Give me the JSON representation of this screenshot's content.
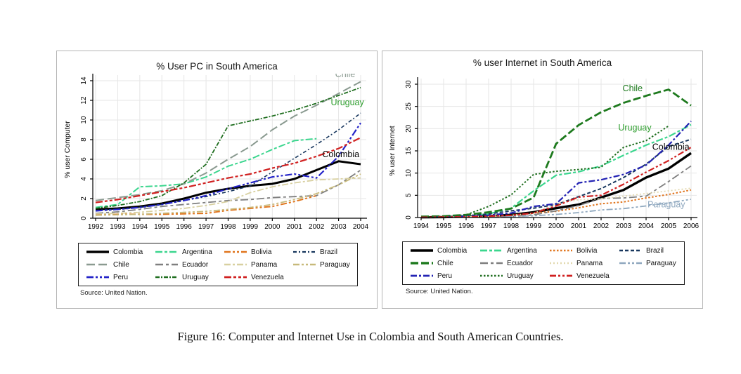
{
  "figure_caption": "Figure 16: Computer and Internet Use in Colombia and South American Countries.",
  "chart_data": [
    {
      "type": "line",
      "title": "% User PC in South America",
      "ylabel": "% user Computer",
      "source": "Source: United Nation.",
      "grid": true,
      "legend_position": "bottom",
      "x": [
        1992,
        1993,
        1994,
        1995,
        1996,
        1997,
        1998,
        1999,
        2000,
        2001,
        2002,
        2003,
        2004
      ],
      "ylim": [
        0,
        14
      ],
      "yticks": [
        0,
        2,
        4,
        6,
        8,
        10,
        12,
        14
      ],
      "annotations": [
        {
          "text": "Chile",
          "x": 2003.3,
          "y": 14.35,
          "color": "#8a9a90"
        },
        {
          "text": "Uruguay",
          "x": 2003.4,
          "y": 11.5,
          "color": "#2f9e2f"
        },
        {
          "text": "Colombia",
          "x": 2003.1,
          "y": 6.2,
          "color": "#000000"
        }
      ],
      "series": [
        {
          "name": "Colombia",
          "color": "#000000",
          "dash": "",
          "width": 3,
          "values": [
            0.9,
            1.0,
            1.2,
            1.5,
            2.0,
            2.6,
            3.0,
            3.3,
            3.5,
            4.0,
            4.9,
            5.8,
            5.5
          ]
        },
        {
          "name": "Argentina",
          "color": "#3bd68e",
          "dash": "10 3 4 3",
          "width": 2,
          "values": [
            1.1,
            1.4,
            3.2,
            3.3,
            3.5,
            4.2,
            5.3,
            6.0,
            7.0,
            7.9,
            8.1,
            null,
            null
          ]
        },
        {
          "name": "Bolivia",
          "color": "#e0751e",
          "dash": "9 3 3 3 3 3",
          "width": 2,
          "values": [
            0.35,
            0.4,
            0.4,
            0.4,
            0.45,
            0.5,
            0.8,
            1.0,
            1.2,
            1.7,
            2.3,
            null,
            null
          ]
        },
        {
          "name": "Brazil",
          "color": "#17365d",
          "dash": "5 3 2 3",
          "width": 1.6,
          "values": [
            0.8,
            0.9,
            1.1,
            1.4,
            1.8,
            2.2,
            2.7,
            3.3,
            4.7,
            6.1,
            7.5,
            9.0,
            10.7
          ]
        },
        {
          "name": "Chile",
          "color": "#8a9a90",
          "dash": "12 5",
          "width": 2,
          "values": [
            1.8,
            2.1,
            2.4,
            2.8,
            3.5,
            4.6,
            6.0,
            7.3,
            9.0,
            10.4,
            11.5,
            12.7,
            13.9
          ]
        },
        {
          "name": "Ecuador",
          "color": "#7f7f7f",
          "dash": "11 4 4 4",
          "width": 1.8,
          "values": [
            0.5,
            0.65,
            0.9,
            1.2,
            1.4,
            1.6,
            1.8,
            1.9,
            2.1,
            2.2,
            2.3,
            3.4,
            4.9
          ]
        },
        {
          "name": "Panama",
          "color": "#d8d0a0",
          "dash": "9 3 3 3",
          "width": 1.8,
          "values": [
            0.45,
            0.5,
            0.6,
            0.8,
            1.0,
            1.3,
            1.7,
            2.6,
            3.2,
            3.6,
            3.9,
            4.0,
            4.1
          ]
        },
        {
          "name": "Paraguay",
          "color": "#c7b97a",
          "dash": "9 3 3 3 3 3",
          "width": 1.8,
          "values": [
            0.3,
            0.35,
            0.4,
            0.5,
            0.6,
            0.7,
            0.9,
            1.1,
            1.4,
            1.9,
            2.5,
            3.4,
            4.5
          ]
        },
        {
          "name": "Peru",
          "color": "#2323c8",
          "dash": "10 3 3 3 3 3",
          "width": 2.2,
          "values": [
            0.75,
            0.9,
            1.1,
            1.4,
            1.8,
            2.3,
            3.0,
            3.6,
            4.2,
            4.5,
            4.1,
            6.3,
            9.7
          ]
        },
        {
          "name": "Uruguay",
          "color": "#1f6e1f",
          "dash": "6 2 2 2",
          "width": 1.8,
          "values": [
            1.0,
            1.3,
            1.7,
            2.3,
            3.6,
            5.5,
            9.4,
            9.9,
            10.4,
            11.0,
            11.7,
            12.5,
            13.3
          ]
        },
        {
          "name": "Venezuela",
          "color": "#d02020",
          "dash": "10 3 4 3 4 3",
          "width": 2.2,
          "values": [
            1.6,
            1.9,
            2.3,
            2.7,
            3.1,
            3.6,
            4.1,
            4.5,
            5.1,
            5.6,
            6.3,
            7.1,
            8.2
          ]
        }
      ]
    },
    {
      "type": "line",
      "title": "% user Internet in South America",
      "ylabel": "% user Internet",
      "source": "Source: United Nation.",
      "grid": true,
      "legend_position": "bottom",
      "x": [
        1994,
        1995,
        1996,
        1997,
        1998,
        1999,
        2000,
        2001,
        2002,
        2003,
        2004,
        2005,
        2006
      ],
      "ylim": [
        0,
        30
      ],
      "yticks": [
        0,
        5,
        10,
        15,
        20,
        25,
        30
      ],
      "annotations": [
        {
          "text": "Chile",
          "x": 2003.4,
          "y": 28.4,
          "color": "#1e7a1e"
        },
        {
          "text": "Uruguay",
          "x": 2003.5,
          "y": 19.6,
          "color": "#2f9e2f"
        },
        {
          "text": "Colombia",
          "x": 2005.1,
          "y": 15.2,
          "color": "#000000"
        },
        {
          "text": "Paraguay",
          "x": 2004.9,
          "y": 2.3,
          "color": "#8fa8bf"
        }
      ],
      "series": [
        {
          "name": "Colombia",
          "color": "#000000",
          "dash": "",
          "width": 3.4,
          "values": [
            0.05,
            0.1,
            0.2,
            0.3,
            0.6,
            1.2,
            2.1,
            2.9,
            4.5,
            6.2,
            9.0,
            11.0,
            14.5
          ]
        },
        {
          "name": "Argentina",
          "color": "#3bd68e",
          "dash": "10 3 4 3",
          "width": 2.2,
          "values": [
            0.05,
            0.1,
            0.3,
            0.8,
            2.1,
            6.0,
            9.5,
            10.3,
            11.6,
            14.0,
            16.3,
            18.2,
            20.9
          ]
        },
        {
          "name": "Bolivia",
          "color": "#e0751e",
          "dash": "2.5 2.5",
          "width": 2,
          "values": [
            0.05,
            0.1,
            0.15,
            0.2,
            0.5,
            1.0,
            1.4,
            2.2,
            3.1,
            3.5,
            4.4,
            5.2,
            6.2
          ]
        },
        {
          "name": "Brazil",
          "color": "#17365d",
          "dash": "5 3",
          "width": 2,
          "values": [
            0.05,
            0.1,
            0.4,
            0.8,
            1.5,
            2.1,
            2.9,
            4.7,
            6.5,
            9.0,
            12.0,
            16.0,
            17.6
          ]
        },
        {
          "name": "Chile",
          "color": "#1e7a1e",
          "dash": "11 4",
          "width": 2.8,
          "values": [
            0.2,
            0.3,
            0.6,
            1.2,
            2.0,
            4.5,
            16.6,
            20.8,
            23.7,
            25.8,
            27.4,
            28.8,
            25.2
          ]
        },
        {
          "name": "Ecuador",
          "color": "#7f7f7f",
          "dash": "11 4 4 4",
          "width": 1.8,
          "values": [
            0.05,
            0.1,
            0.1,
            0.15,
            0.2,
            0.6,
            1.5,
            2.7,
            4.3,
            4.4,
            4.8,
            8.1,
            11.6
          ]
        },
        {
          "name": "Panama",
          "color": "#e3d9b0",
          "dash": "2 3",
          "width": 1.8,
          "values": [
            0.05,
            0.1,
            0.2,
            0.3,
            0.5,
            0.9,
            3.2,
            4.0,
            4.2,
            4.8,
            5.4,
            6.0,
            6.6
          ]
        },
        {
          "name": "Paraguay",
          "color": "#8fa8bf",
          "dash": "9 3 3 3 3 3",
          "width": 1.8,
          "values": [
            0.02,
            0.05,
            0.1,
            0.1,
            0.2,
            0.4,
            0.7,
            1.1,
            1.7,
            2.0,
            2.6,
            3.3,
            4.1
          ]
        },
        {
          "name": "Peru",
          "color": "#2323b4",
          "dash": "9 3 3 3",
          "width": 2.2,
          "values": [
            0.05,
            0.1,
            0.25,
            0.5,
            1.0,
            2.5,
            3.1,
            7.8,
            8.5,
            9.7,
            11.8,
            16.3,
            21.7
          ]
        },
        {
          "name": "Uruguay",
          "color": "#1f6e1f",
          "dash": "2.5 2.5",
          "width": 2,
          "values": [
            0.1,
            0.25,
            0.6,
            2.5,
            5.1,
            9.7,
            10.4,
            10.8,
            11.3,
            15.8,
            17.3,
            20.6,
            null
          ]
        },
        {
          "name": "Venezuela",
          "color": "#d02020",
          "dash": "9 3 3 3 3 3",
          "width": 2.2,
          "values": [
            0.05,
            0.1,
            0.15,
            0.3,
            0.5,
            1.0,
            2.6,
            4.6,
            5.0,
            7.5,
            10.2,
            12.8,
            15.8
          ]
        }
      ]
    }
  ]
}
